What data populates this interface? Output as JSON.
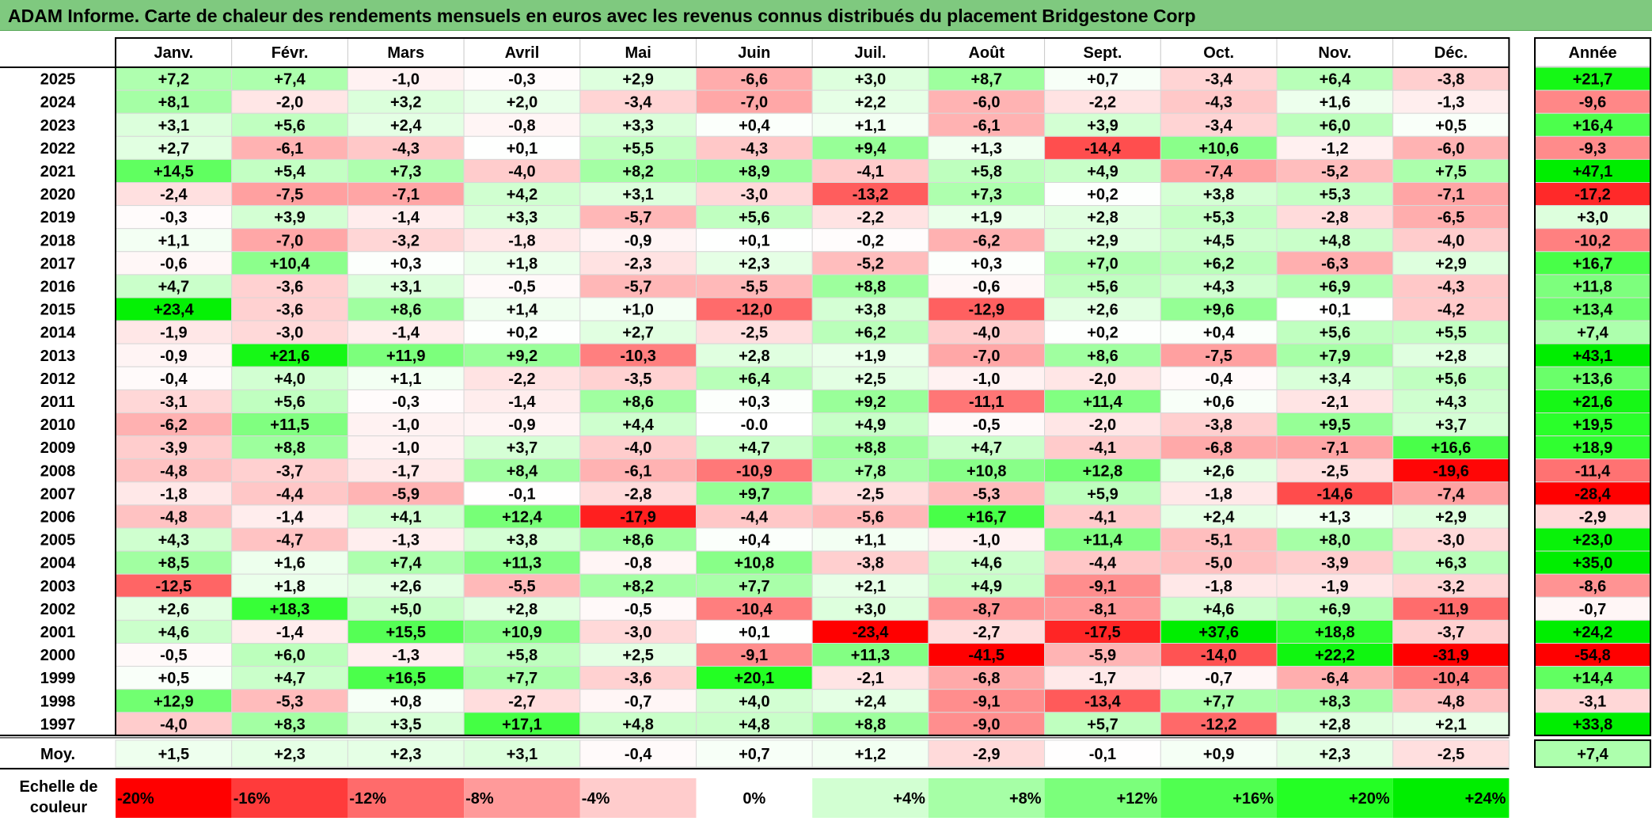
{
  "title": "ADAM Informe. Carte de chaleur des rendements mensuels en euros avec les revenus connus distribués du placement Bridgestone Corp",
  "chart_data": {
    "type": "heatmap",
    "columns": [
      "Janv.",
      "Févr.",
      "Mars",
      "Avril",
      "Mai",
      "Juin",
      "Juil.",
      "Août",
      "Sept.",
      "Oct.",
      "Nov.",
      "Déc."
    ],
    "annual_label": "Année",
    "average_label": "Moy.",
    "rows": [
      {
        "year": "2025",
        "values": [
          7.2,
          7.4,
          -1.0,
          -0.3,
          2.9,
          -6.6,
          3.0,
          8.7,
          0.7,
          -3.4,
          6.4,
          -3.8
        ],
        "annual": 21.7
      },
      {
        "year": "2024",
        "values": [
          8.1,
          -2.0,
          3.2,
          2.0,
          -3.4,
          -7.0,
          2.2,
          -6.0,
          -2.2,
          -4.3,
          1.6,
          -1.3
        ],
        "annual": -9.6
      },
      {
        "year": "2023",
        "values": [
          3.1,
          5.6,
          2.4,
          -0.8,
          3.3,
          0.4,
          1.1,
          -6.1,
          3.9,
          -3.4,
          6.0,
          0.5
        ],
        "annual": 16.4
      },
      {
        "year": "2022",
        "values": [
          2.7,
          -6.1,
          -4.3,
          0.1,
          5.5,
          -4.3,
          9.4,
          1.3,
          -14.4,
          10.6,
          -1.2,
          -6.0
        ],
        "annual": -9.3
      },
      {
        "year": "2021",
        "values": [
          14.5,
          5.4,
          7.3,
          -4.0,
          8.2,
          8.9,
          -4.1,
          5.8,
          4.9,
          -7.4,
          -5.2,
          7.5
        ],
        "annual": 47.1
      },
      {
        "year": "2020",
        "values": [
          -2.4,
          -7.5,
          -7.1,
          4.2,
          3.1,
          -3.0,
          -13.2,
          7.3,
          0.2,
          3.8,
          5.3,
          -7.1
        ],
        "annual": -17.2
      },
      {
        "year": "2019",
        "values": [
          -0.3,
          3.9,
          -1.4,
          3.3,
          -5.7,
          5.6,
          -2.2,
          1.9,
          2.8,
          5.3,
          -2.8,
          -6.5
        ],
        "annual": 3.0
      },
      {
        "year": "2018",
        "values": [
          1.1,
          -7.0,
          -3.2,
          -1.8,
          -0.9,
          0.1,
          -0.2,
          -6.2,
          2.9,
          4.5,
          4.8,
          -4.0
        ],
        "annual": -10.2
      },
      {
        "year": "2017",
        "values": [
          -0.6,
          10.4,
          0.3,
          1.8,
          -2.3,
          2.3,
          -5.2,
          0.3,
          7.0,
          6.2,
          -6.3,
          2.9
        ],
        "annual": 16.7
      },
      {
        "year": "2016",
        "values": [
          4.7,
          -3.6,
          3.1,
          -0.5,
          -5.7,
          -5.5,
          8.8,
          -0.6,
          5.6,
          4.3,
          6.9,
          -4.3
        ],
        "annual": 11.8
      },
      {
        "year": "2015",
        "values": [
          23.4,
          -3.6,
          8.6,
          1.4,
          1.0,
          -12.0,
          3.8,
          -12.9,
          2.6,
          9.6,
          0.1,
          -4.2
        ],
        "annual": 13.4
      },
      {
        "year": "2014",
        "values": [
          -1.9,
          -3.0,
          -1.4,
          0.2,
          2.7,
          -2.5,
          6.2,
          -4.0,
          0.2,
          0.4,
          5.6,
          5.5
        ],
        "annual": 7.4
      },
      {
        "year": "2013",
        "values": [
          -0.9,
          21.6,
          11.9,
          9.2,
          -10.3,
          2.8,
          1.9,
          -7.0,
          8.6,
          -7.5,
          7.9,
          2.8
        ],
        "annual": 43.1
      },
      {
        "year": "2012",
        "values": [
          -0.4,
          4.0,
          1.1,
          -2.2,
          -3.5,
          6.4,
          2.5,
          -1.0,
          -2.0,
          -0.4,
          3.4,
          5.6
        ],
        "annual": 13.6
      },
      {
        "year": "2011",
        "values": [
          -3.1,
          5.6,
          -0.3,
          -1.4,
          8.6,
          0.3,
          9.2,
          -11.1,
          11.4,
          0.6,
          -2.1,
          4.3
        ],
        "annual": 21.6
      },
      {
        "year": "2010",
        "values": [
          -6.2,
          11.5,
          -1.0,
          -0.9,
          4.4,
          "-0.0",
          4.9,
          -0.5,
          -2.0,
          -3.8,
          9.5,
          3.7
        ],
        "annual": 19.5
      },
      {
        "year": "2009",
        "values": [
          -3.9,
          8.8,
          -1.0,
          3.7,
          -4.0,
          4.7,
          8.8,
          4.7,
          -4.1,
          -6.8,
          -7.1,
          16.6
        ],
        "annual": 18.9
      },
      {
        "year": "2008",
        "values": [
          -4.8,
          -3.7,
          -1.7,
          8.4,
          -6.1,
          -10.9,
          7.8,
          10.8,
          12.8,
          2.6,
          -2.5,
          -19.6
        ],
        "annual": -11.4
      },
      {
        "year": "2007",
        "values": [
          -1.8,
          -4.4,
          -5.9,
          -0.1,
          -2.8,
          9.7,
          -2.5,
          -5.3,
          5.9,
          -1.8,
          -14.6,
          -7.4
        ],
        "annual": -28.4
      },
      {
        "year": "2006",
        "values": [
          -4.8,
          -1.4,
          4.1,
          12.4,
          -17.9,
          -4.4,
          -5.6,
          16.7,
          -4.1,
          2.4,
          1.3,
          2.9
        ],
        "annual": -2.9
      },
      {
        "year": "2005",
        "values": [
          4.3,
          -4.7,
          -1.3,
          3.8,
          8.6,
          0.4,
          1.1,
          -1.0,
          11.4,
          -5.1,
          8.0,
          -3.0
        ],
        "annual": 23.0
      },
      {
        "year": "2004",
        "values": [
          8.5,
          1.6,
          7.4,
          11.3,
          -0.8,
          10.8,
          -3.8,
          4.6,
          -4.4,
          -5.0,
          -3.9,
          6.3
        ],
        "annual": 35.0
      },
      {
        "year": "2003",
        "values": [
          -12.5,
          1.8,
          2.6,
          -5.5,
          8.2,
          7.7,
          2.1,
          4.9,
          -9.1,
          -1.8,
          -1.9,
          -3.2
        ],
        "annual": -8.6
      },
      {
        "year": "2002",
        "values": [
          2.6,
          18.3,
          5.0,
          2.8,
          -0.5,
          -10.4,
          3.0,
          -8.7,
          -8.1,
          4.6,
          6.9,
          -11.9
        ],
        "annual": -0.7
      },
      {
        "year": "2001",
        "values": [
          4.6,
          -1.4,
          15.5,
          10.9,
          -3.0,
          0.1,
          -23.4,
          -2.7,
          -17.5,
          37.6,
          18.8,
          -3.7
        ],
        "annual": 24.2
      },
      {
        "year": "2000",
        "values": [
          -0.5,
          6.0,
          -1.3,
          5.8,
          2.5,
          -9.1,
          11.3,
          -41.5,
          -5.9,
          -14.0,
          22.2,
          -31.9
        ],
        "annual": -54.8
      },
      {
        "year": "1999",
        "values": [
          0.5,
          4.7,
          16.5,
          7.7,
          -3.6,
          20.1,
          -2.1,
          -6.8,
          -1.7,
          -0.7,
          -6.4,
          -10.4
        ],
        "annual": 14.4
      },
      {
        "year": "1998",
        "values": [
          12.9,
          -5.3,
          0.8,
          -2.7,
          -0.7,
          4.0,
          2.4,
          -9.1,
          -13.4,
          7.7,
          8.3,
          -4.8
        ],
        "annual": -3.1
      },
      {
        "year": "1997",
        "values": [
          -4.0,
          8.3,
          3.5,
          17.1,
          4.8,
          4.8,
          8.8,
          -9.0,
          5.7,
          -12.2,
          2.8,
          2.1
        ],
        "annual": 33.8
      }
    ],
    "average": {
      "values": [
        1.5,
        2.3,
        2.3,
        3.1,
        -0.4,
        0.7,
        1.2,
        -2.9,
        -0.1,
        0.9,
        2.3,
        -2.5
      ],
      "annual": 7.4
    },
    "color_scale": {
      "label": "Echelle de couleur",
      "stops": [
        {
          "value": -20,
          "label": "-20%",
          "color": "#ff0000"
        },
        {
          "value": -16,
          "label": "-16%",
          "color": "#ff3b3b"
        },
        {
          "value": -12,
          "label": "-12%",
          "color": "#ff6b6b"
        },
        {
          "value": -8,
          "label": "-8%",
          "color": "#ff9a9a"
        },
        {
          "value": -4,
          "label": "-4%",
          "color": "#ffcccc"
        },
        {
          "value": 0,
          "label": "0%",
          "color": "#ffffff"
        },
        {
          "value": 4,
          "label": "+4%",
          "color": "#d2ffd2"
        },
        {
          "value": 8,
          "label": "+8%",
          "color": "#a6ffa6"
        },
        {
          "value": 12,
          "label": "+12%",
          "color": "#7bff7b"
        },
        {
          "value": 16,
          "label": "+16%",
          "color": "#50ff50"
        },
        {
          "value": 20,
          "label": "+20%",
          "color": "#24ff24"
        },
        {
          "value": 24,
          "label": "+24%",
          "color": "#00ee00"
        }
      ]
    }
  }
}
